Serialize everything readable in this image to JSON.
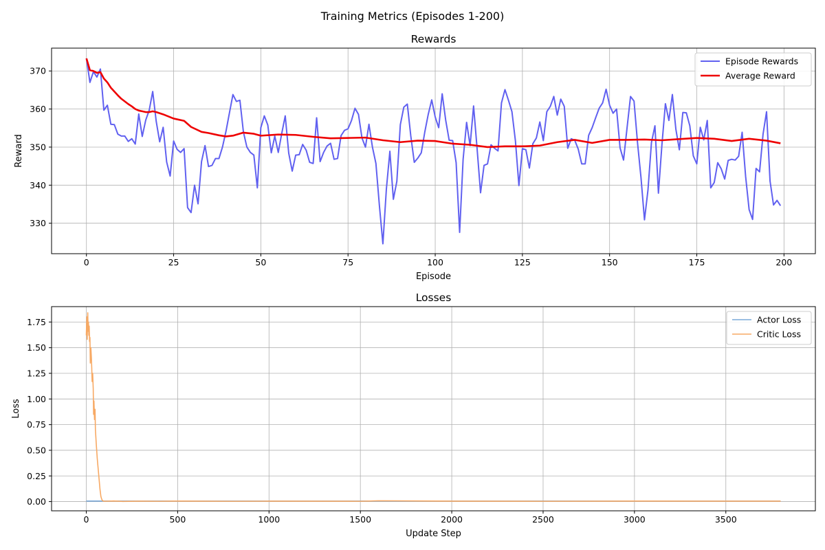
{
  "figure": {
    "suptitle": "Training Metrics (Episodes 1-200)"
  },
  "colors": {
    "episode": "#6060f0",
    "average": "#ee0000",
    "actor": "#7aa9d9",
    "critic": "#f7a964",
    "grid": "#b0b0b0"
  },
  "chart_data": [
    {
      "type": "line",
      "title": "Rewards",
      "xlabel": "Episode",
      "ylabel": "Reward",
      "xlim": [
        -10,
        209
      ],
      "ylim": [
        322,
        376
      ],
      "xticks": [
        0,
        25,
        50,
        75,
        100,
        125,
        150,
        175,
        200
      ],
      "yticks": [
        330,
        340,
        350,
        360,
        370
      ],
      "grid": true,
      "legend_position": "top-right",
      "series": [
        {
          "name": "Episode Rewards",
          "x_start": 0,
          "x_step": 1,
          "values": [
            373.3,
            367.0,
            369.8,
            368.4,
            370.5,
            359.7,
            361.0,
            356.0,
            355.9,
            353.4,
            352.9,
            352.9,
            351.5,
            352.2,
            350.8,
            358.7,
            352.8,
            357.1,
            359.7,
            364.6,
            356.8,
            351.4,
            355.2,
            346.1,
            342.4,
            351.6,
            349.4,
            348.6,
            349.6,
            334.1,
            332.8,
            340.0,
            335.1,
            346.2,
            350.4,
            344.9,
            345.2,
            347.0,
            347.0,
            350.0,
            354.1,
            359.0,
            363.8,
            362.0,
            362.3,
            354.0,
            350.0,
            348.6,
            347.9,
            339.3,
            355.1,
            358.2,
            355.8,
            348.5,
            352.9,
            348.6,
            353.6,
            358.2,
            348.4,
            343.7,
            347.9,
            348.0,
            350.7,
            349.2,
            346.0,
            345.7,
            357.7,
            346.2,
            348.6,
            350.3,
            351.0,
            346.8,
            347.0,
            353.0,
            354.4,
            354.8,
            357.0,
            360.2,
            358.6,
            352.4,
            350.0,
            356.0,
            350.0,
            345.7,
            334.6,
            324.6,
            339.0,
            348.9,
            336.3,
            341.0,
            355.9,
            360.5,
            361.3,
            352.9,
            346.0,
            347.1,
            348.5,
            353.9,
            358.6,
            362.4,
            357.9,
            355.1,
            364.0,
            357.1,
            351.8,
            351.7,
            345.9,
            327.6,
            346.8,
            356.5,
            350.4,
            360.8,
            349.7,
            338.0,
            345.2,
            345.6,
            350.6,
            349.7,
            349.0,
            361.6,
            365.1,
            362.3,
            359.3,
            351.6,
            339.9,
            349.6,
            349.3,
            344.5,
            350.9,
            352.4,
            356.6,
            351.7,
            359.3,
            360.7,
            363.3,
            358.4,
            362.6,
            360.7,
            349.7,
            352.2,
            351.8,
            349.5,
            345.6,
            345.6,
            353.1,
            355.1,
            357.7,
            360.2,
            361.6,
            365.2,
            361.0,
            358.9,
            360.0,
            349.8,
            346.6,
            355.0,
            363.3,
            362.1,
            351.2,
            342.0,
            330.9,
            338.7,
            351.2,
            355.6,
            337.9,
            350.6,
            361.4,
            357.0,
            363.8,
            354.7,
            349.3,
            359.1,
            359.0,
            355.6,
            347.7,
            345.6,
            355.2,
            351.9,
            357.0,
            339.3,
            340.7,
            345.9,
            344.3,
            341.6,
            346.5,
            346.8,
            346.6,
            347.6,
            353.9,
            342.3,
            333.6,
            331.0,
            344.4,
            343.5,
            353.4,
            359.3,
            341.1,
            334.8,
            336.0,
            334.6
          ]
        },
        {
          "name": "Average Reward",
          "x": [
            0,
            1,
            2,
            3,
            4,
            5,
            6,
            7,
            8,
            9,
            10,
            11,
            12,
            13,
            14,
            15,
            16,
            17,
            18,
            19,
            20,
            22,
            25,
            28,
            30,
            33,
            35,
            38,
            40,
            42,
            45,
            48,
            50,
            55,
            60,
            65,
            70,
            75,
            80,
            85,
            90,
            95,
            100,
            105,
            110,
            115,
            120,
            125,
            130,
            135,
            140,
            145,
            150,
            155,
            160,
            165,
            170,
            175,
            180,
            185,
            190,
            195,
            199
          ],
          "values": [
            373.3,
            370.2,
            370.0,
            369.5,
            369.7,
            368.0,
            367.0,
            365.6,
            364.6,
            363.6,
            362.7,
            362.0,
            361.3,
            360.7,
            360.0,
            359.6,
            359.4,
            359.2,
            359.2,
            359.4,
            359.2,
            358.6,
            357.5,
            356.9,
            355.3,
            354.0,
            353.7,
            353.1,
            352.8,
            353.0,
            353.8,
            353.5,
            353.0,
            353.3,
            353.2,
            352.7,
            352.3,
            352.4,
            352.5,
            351.8,
            351.3,
            351.7,
            351.6,
            350.9,
            350.6,
            350.0,
            350.2,
            350.2,
            350.4,
            351.3,
            351.9,
            351.1,
            351.9,
            351.9,
            352.0,
            351.8,
            352.1,
            352.4,
            352.2,
            351.6,
            352.2,
            351.7,
            351.0
          ]
        }
      ]
    },
    {
      "type": "line",
      "title": "Losses",
      "xlabel": "Update Step",
      "ylabel": "Loss",
      "xlim": [
        -190,
        3990
      ],
      "ylim": [
        -0.09,
        1.9
      ],
      "xticks": [
        0,
        500,
        1000,
        1500,
        2000,
        2500,
        3000,
        3500
      ],
      "yticks": [
        0.0,
        0.25,
        0.5,
        0.75,
        1.0,
        1.25,
        1.5,
        1.75
      ],
      "ytick_labels": [
        "0.00",
        "0.25",
        "0.50",
        "0.75",
        "1.00",
        "1.25",
        "1.50",
        "1.75"
      ],
      "grid": true,
      "legend_position": "top-right",
      "series": [
        {
          "name": "Actor Loss",
          "x": [
            0,
            3800
          ],
          "values": [
            0.005,
            0.005
          ]
        },
        {
          "name": "Critic Loss",
          "x": [
            0,
            3,
            5,
            8,
            10,
            12,
            14,
            16,
            18,
            20,
            22,
            25,
            28,
            30,
            32,
            35,
            38,
            40,
            42,
            45,
            48,
            50,
            55,
            60,
            65,
            70,
            75,
            80,
            85,
            90,
            100,
            150,
            200,
            300,
            400,
            500,
            600,
            800,
            1000,
            1500,
            1600,
            2000,
            2500,
            3000,
            3500,
            3800
          ],
          "values": [
            1.62,
            1.8,
            1.58,
            1.84,
            1.66,
            1.75,
            1.62,
            1.71,
            1.56,
            1.6,
            1.35,
            1.5,
            1.4,
            1.3,
            1.17,
            1.25,
            1.1,
            0.85,
            0.98,
            0.8,
            0.9,
            0.7,
            0.55,
            0.42,
            0.32,
            0.22,
            0.12,
            0.05,
            0.02,
            0.008,
            0.003,
            0.006,
            0.002,
            0.004,
            0.003,
            0.005,
            0.004,
            0.003,
            0.004,
            0.003,
            0.008,
            0.004,
            0.003,
            0.005,
            0.004,
            0.004
          ]
        }
      ]
    }
  ]
}
